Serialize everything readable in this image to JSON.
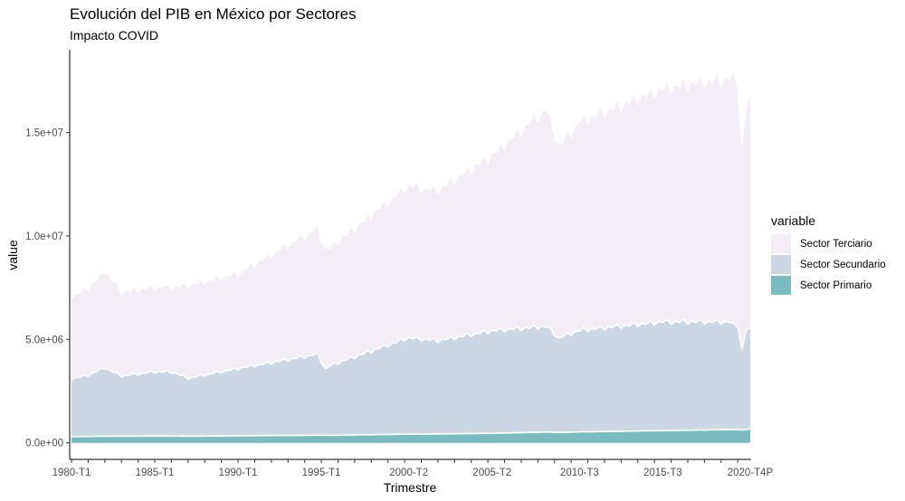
{
  "title": "Evolución del PIB en México por Sectores",
  "subtitle": "Impacto COVID",
  "chart_data": {
    "type": "area",
    "stacked": true,
    "xlabel": "Trimestre",
    "ylabel": "value",
    "x_start": "1980-T1",
    "x_end": "2020-T4P",
    "x_tick_labels": [
      "1980-T1",
      "1985-T1",
      "1990-T1",
      "1995-T1",
      "2000-T2",
      "2005-T2",
      "2010-T3",
      "2015-T3",
      "2020-T4P"
    ],
    "y_ticks": [
      0,
      5000000,
      10000000,
      15000000
    ],
    "y_tick_labels": [
      "0.0e+00",
      "5.0e+06",
      "1.0e+07",
      "1.5e+07"
    ],
    "ylim": [
      -800000,
      19000000
    ],
    "legend_title": "variable",
    "legend_placement": "right",
    "grid": false,
    "series_control_x": [
      "1980-T1",
      "1981-T1",
      "1982-T1",
      "1983-T1",
      "1985-T1",
      "1986-T1",
      "1987-T1",
      "1990-T1",
      "1994-T4",
      "1995-T2",
      "1995-T3",
      "1996-T1",
      "2000-T2",
      "2001-T3",
      "2002-T1",
      "2005-T2",
      "2008-T3",
      "2009-T2",
      "2010-T3",
      "2015-T3",
      "2019-T3",
      "2019-T4",
      "2020-T1",
      "2020-T2",
      "2020-T3",
      "2020-T4P"
    ],
    "series": [
      {
        "name": "Sector Primario",
        "color": "#7bbcc0",
        "values": [
          300000,
          310000,
          320000,
          320000,
          330000,
          330000,
          320000,
          340000,
          370000,
          370000,
          360000,
          370000,
          420000,
          420000,
          430000,
          460000,
          520000,
          500000,
          530000,
          590000,
          640000,
          640000,
          650000,
          620000,
          650000,
          680000
        ]
      },
      {
        "name": "Sector Secundario",
        "color": "#ccd7e6",
        "values": [
          2800000,
          2950000,
          3300000,
          2900000,
          3100000,
          3100000,
          2800000,
          3250000,
          3900000,
          3200000,
          3350000,
          3500000,
          4650000,
          4550000,
          4500000,
          4950000,
          5100000,
          4550000,
          4900000,
          5250000,
          5200000,
          5150000,
          4950000,
          3900000,
          4750000,
          4950000
        ]
      },
      {
        "name": "Sector Terciario",
        "color": "#f3eef6",
        "values": [
          4000000,
          4200000,
          4700000,
          4100000,
          4100000,
          4100000,
          4500000,
          4600000,
          6100000,
          5800000,
          5700000,
          5900000,
          7400000,
          7300000,
          7300000,
          8500000,
          10500000,
          9300000,
          10100000,
          11300000,
          11800000,
          12100000,
          11600000,
          9900000,
          10900000,
          11200000
        ]
      }
    ]
  }
}
